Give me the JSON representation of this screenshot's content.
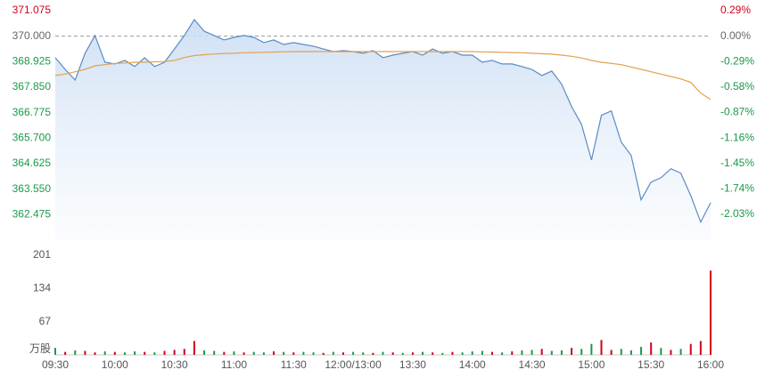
{
  "chart_data": [
    {
      "type": "line",
      "x": [
        0,
        5,
        10,
        15,
        20,
        25,
        30,
        35,
        40,
        45,
        50,
        55,
        60,
        65,
        70,
        75,
        80,
        85,
        90,
        95,
        100,
        105,
        110,
        115,
        120,
        125,
        130,
        135,
        140,
        145,
        150,
        155,
        160,
        165,
        170,
        175,
        180,
        185,
        190,
        195,
        200,
        205,
        210,
        215,
        220,
        225,
        230,
        235,
        240,
        245,
        250,
        255,
        260,
        265,
        270,
        275,
        280,
        285,
        290,
        295,
        300,
        305,
        310,
        315,
        320,
        325,
        330
      ],
      "series": [
        {
          "color": "#5b8bc4",
          "values": [
            369.09,
            368.6,
            368.15,
            369.28,
            370.03,
            368.9,
            368.83,
            368.98,
            368.72,
            369.09,
            368.72,
            368.9,
            369.46,
            370.03,
            370.7,
            370.21,
            370.03,
            369.84,
            369.95,
            370.03,
            369.95,
            369.73,
            369.84,
            369.65,
            369.73,
            369.65,
            369.58,
            369.46,
            369.35,
            369.39,
            369.35,
            369.28,
            369.39,
            369.09,
            369.2,
            369.28,
            369.35,
            369.2,
            369.46,
            369.28,
            369.35,
            369.2,
            369.2,
            368.9,
            368.98,
            368.83,
            368.83,
            368.72,
            368.6,
            368.34,
            368.53,
            367.97,
            367.03,
            366.28,
            364.78,
            366.66,
            366.85,
            365.53,
            364.97,
            363.1,
            363.85,
            364.03,
            364.41,
            364.22,
            363.28,
            362.16,
            362.98
          ]
        },
        {
          "color": "#e3a04f",
          "values": [
            368.34,
            368.4,
            368.5,
            368.6,
            368.75,
            368.8,
            368.85,
            368.87,
            368.9,
            368.9,
            368.92,
            368.93,
            368.98,
            369.1,
            369.18,
            369.22,
            369.25,
            369.27,
            369.28,
            369.3,
            369.31,
            369.32,
            369.33,
            369.34,
            369.35,
            369.35,
            369.35,
            369.35,
            369.35,
            369.35,
            369.35,
            369.35,
            369.35,
            369.35,
            369.35,
            369.35,
            369.35,
            369.35,
            369.35,
            369.35,
            369.35,
            369.35,
            369.35,
            369.34,
            369.33,
            369.32,
            369.31,
            369.3,
            369.28,
            369.26,
            369.24,
            369.2,
            369.15,
            369.08,
            368.98,
            368.9,
            368.85,
            368.8,
            368.7,
            368.6,
            368.5,
            368.4,
            368.3,
            368.2,
            368.05,
            367.6,
            367.33
          ]
        }
      ],
      "prev_close": 370,
      "up_color": "#d0021b",
      "down_color": "#1a9a4a",
      "flat_color": "#666666",
      "xlim": [
        0,
        330
      ],
      "ylim": [
        361.4,
        371.075
      ],
      "yticks": [
        {
          "value": 371.075,
          "label": "371.075"
        },
        {
          "value": 370,
          "label": "370.000"
        },
        {
          "value": 368.925,
          "label": "368.925"
        },
        {
          "value": 367.85,
          "label": "367.850"
        },
        {
          "value": 366.775,
          "label": "366.775"
        },
        {
          "value": 365.7,
          "label": "365.700"
        },
        {
          "value": 364.625,
          "label": "364.625"
        },
        {
          "value": 363.55,
          "label": "363.550"
        },
        {
          "value": 362.475,
          "label": "362.475"
        }
      ],
      "y2lim": [
        -2.324,
        0.29
      ],
      "y2ticks": [
        {
          "value": 0.29,
          "label": "0.29%"
        },
        {
          "value": 0,
          "label": "0.00%"
        },
        {
          "value": -0.29,
          "label": "-0.29%"
        },
        {
          "value": -0.58,
          "label": "-0.58%"
        },
        {
          "value": -0.87,
          "label": "-0.87%"
        },
        {
          "value": -1.16,
          "label": "-1.16%"
        },
        {
          "value": -1.45,
          "label": "-1.45%"
        },
        {
          "value": -1.74,
          "label": "-1.74%"
        },
        {
          "value": -2.03,
          "label": "-2.03%"
        }
      ]
    },
    {
      "type": "bar",
      "x": [
        0,
        5,
        10,
        15,
        20,
        25,
        30,
        35,
        40,
        45,
        50,
        55,
        60,
        65,
        70,
        75,
        80,
        85,
        90,
        95,
        100,
        105,
        110,
        115,
        120,
        125,
        130,
        135,
        140,
        145,
        150,
        155,
        160,
        165,
        170,
        175,
        180,
        185,
        190,
        195,
        200,
        205,
        210,
        215,
        220,
        225,
        230,
        235,
        240,
        245,
        250,
        255,
        260,
        265,
        270,
        275,
        280,
        285,
        290,
        295,
        300,
        305,
        310,
        315,
        320,
        325,
        330
      ],
      "values": [
        14,
        6,
        9,
        8,
        5,
        7,
        6,
        5,
        7,
        6,
        5,
        8,
        10,
        12,
        28,
        9,
        8,
        6,
        7,
        5,
        6,
        5,
        7,
        6,
        5,
        6,
        5,
        4,
        6,
        5,
        6,
        5,
        4,
        6,
        5,
        4,
        5,
        6,
        5,
        4,
        6,
        5,
        7,
        8,
        6,
        5,
        7,
        9,
        10,
        12,
        8,
        9,
        14,
        12,
        22,
        30,
        10,
        12,
        9,
        16,
        25,
        14,
        10,
        12,
        22,
        28,
        170
      ],
      "colors": [
        "#1a9a4a",
        "#d0021b",
        "#1a9a4a",
        "#d0021b",
        "#d0021b",
        "#1a9a4a",
        "#d0021b",
        "#1a9a4a",
        "#1a9a4a",
        "#d0021b",
        "#1a9a4a",
        "#d0021b",
        "#d0021b",
        "#d0021b",
        "#d0021b",
        "#1a9a4a",
        "#1a9a4a",
        "#d0021b",
        "#1a9a4a",
        "#d0021b",
        "#1a9a4a",
        "#1a9a4a",
        "#d0021b",
        "#1a9a4a",
        "#d0021b",
        "#1a9a4a",
        "#1a9a4a",
        "#d0021b",
        "#1a9a4a",
        "#d0021b",
        "#1a9a4a",
        "#1a9a4a",
        "#d0021b",
        "#1a9a4a",
        "#d0021b",
        "#1a9a4a",
        "#d0021b",
        "#1a9a4a",
        "#d0021b",
        "#1a9a4a",
        "#d0021b",
        "#1a9a4a",
        "#1a9a4a",
        "#1a9a4a",
        "#d0021b",
        "#1a9a4a",
        "#d0021b",
        "#1a9a4a",
        "#1a9a4a",
        "#d0021b",
        "#1a9a4a",
        "#1a9a4a",
        "#d0021b",
        "#1a9a4a",
        "#1a9a4a",
        "#d0021b",
        "#d0021b",
        "#1a9a4a",
        "#1a9a4a",
        "#1a9a4a",
        "#d0021b",
        "#1a9a4a",
        "#d0021b",
        "#1a9a4a",
        "#d0021b",
        "#d0021b",
        "#d0021b"
      ],
      "xlim": [
        0,
        330
      ],
      "xticks": [
        {
          "value": 0,
          "label": "09:30"
        },
        {
          "value": 30,
          "label": "10:00"
        },
        {
          "value": 60,
          "label": "10:30"
        },
        {
          "value": 90,
          "label": "11:00"
        },
        {
          "value": 120,
          "label": "11:30"
        },
        {
          "value": 150,
          "label": "12:00/13:00"
        },
        {
          "value": 180,
          "label": "13:30"
        },
        {
          "value": 210,
          "label": "14:00"
        },
        {
          "value": 240,
          "label": "14:30"
        },
        {
          "value": 270,
          "label": "15:00"
        },
        {
          "value": 300,
          "label": "15:30"
        },
        {
          "value": 330,
          "label": "16:00"
        }
      ],
      "ylim": [
        0,
        201
      ],
      "yticks": [
        {
          "value": 0,
          "label": "万股"
        },
        67,
        134,
        201
      ]
    }
  ]
}
